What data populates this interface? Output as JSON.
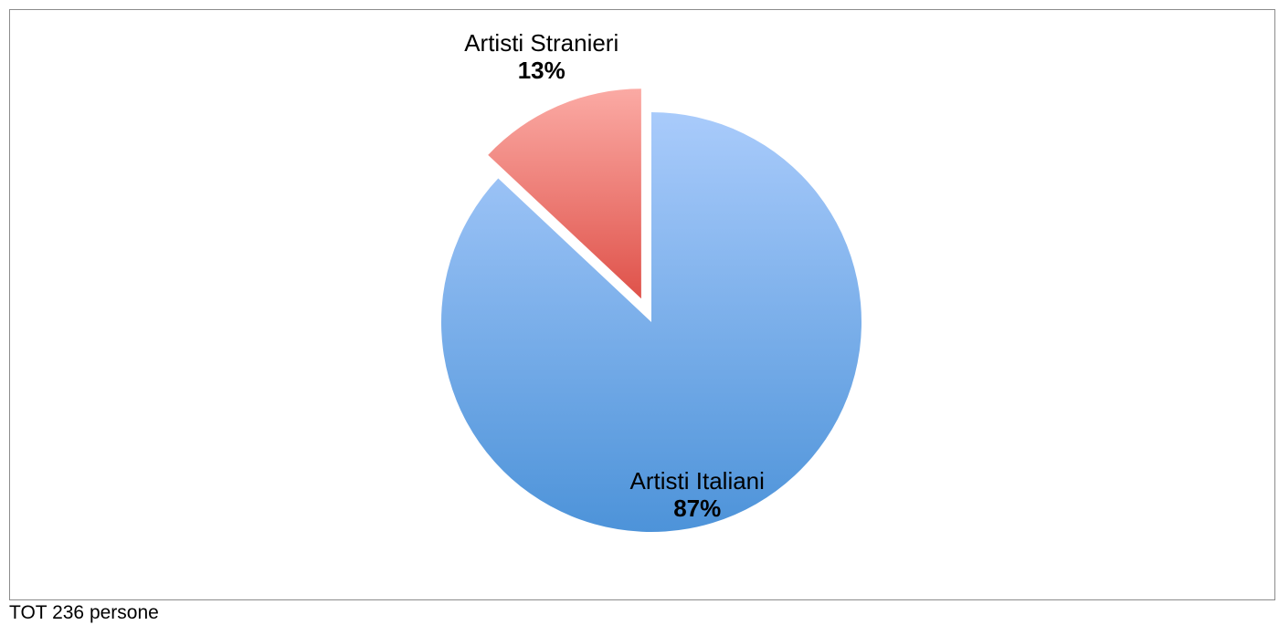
{
  "chart_data": {
    "type": "pie",
    "categories": [
      "Artisti Stranieri",
      "Artisti Italiani"
    ],
    "values": [
      13,
      87
    ],
    "value_labels": [
      "13%",
      "87%"
    ],
    "exploded": [
      true,
      false
    ],
    "colors": {
      "Artisti Stranieri": {
        "top": "#fbaaa4",
        "bottom": "#df524a"
      },
      "Artisti Italiani": {
        "top": "#a9cbfb",
        "bottom": "#4d93d9"
      }
    },
    "start_angle": "12 o'clock",
    "direction": "counter-clockwise",
    "legend": "none"
  },
  "footnote": "TOT 236 persone"
}
